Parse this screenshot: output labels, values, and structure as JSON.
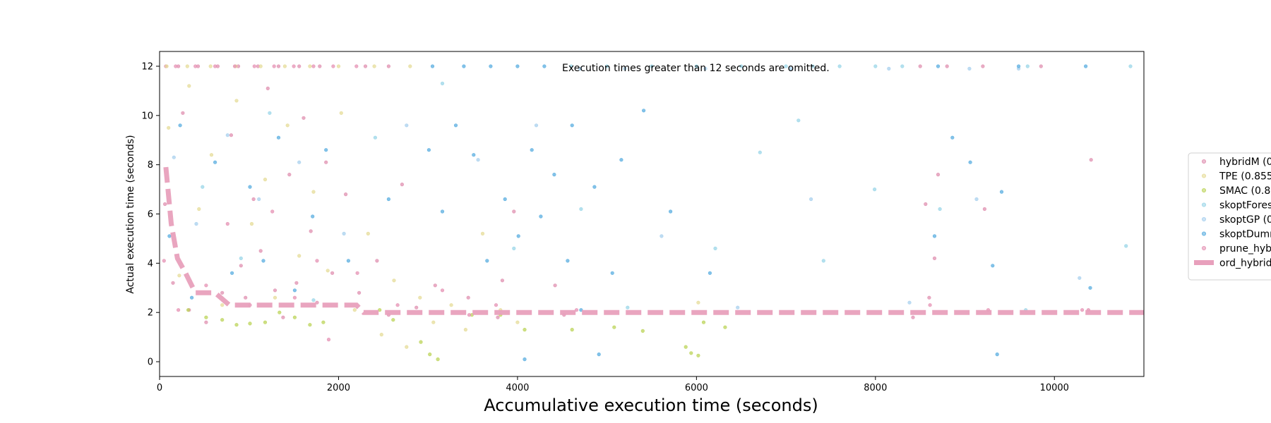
{
  "chart_data": {
    "type": "scatter",
    "title": "",
    "xlabel": "Accumulative execution time (seconds)",
    "ylabel": "Actual execution time (seconds)",
    "xlim": [
      0,
      11000
    ],
    "ylim": [
      -0.6,
      12.6
    ],
    "xticks": [
      0,
      2000,
      4000,
      6000,
      8000,
      10000
    ],
    "yticks": [
      0,
      2,
      4,
      6,
      8,
      10,
      12
    ],
    "grid": false,
    "legend_position": "right (clipped)",
    "annotation": "Execution times greater than 12 seconds are omitted.",
    "series": [
      {
        "name": "hybridM (0",
        "kind": "scatter",
        "color": "#e090b0",
        "points": [
          [
            70,
            12
          ],
          [
            210,
            12
          ],
          [
            430,
            12
          ],
          [
            650,
            12
          ],
          [
            880,
            12
          ],
          [
            1100,
            12
          ],
          [
            1330,
            12
          ],
          [
            1560,
            12
          ],
          [
            1790,
            12
          ],
          [
            2300,
            12
          ],
          [
            2560,
            12
          ],
          [
            8500,
            12
          ],
          [
            8800,
            12
          ],
          [
            9200,
            12
          ],
          [
            9850,
            12
          ],
          [
            60,
            6.4
          ],
          [
            150,
            3.2
          ],
          [
            260,
            10.1
          ],
          [
            330,
            2.1
          ],
          [
            520,
            1.6
          ],
          [
            700,
            2.8
          ],
          [
            800,
            9.2
          ],
          [
            910,
            3.9
          ],
          [
            960,
            2.6
          ],
          [
            1050,
            6.6
          ],
          [
            1130,
            4.5
          ],
          [
            1210,
            11.1
          ],
          [
            1290,
            2.9
          ],
          [
            1380,
            1.8
          ],
          [
            1450,
            7.6
          ],
          [
            1530,
            3.2
          ],
          [
            1610,
            9.9
          ],
          [
            1690,
            5.3
          ],
          [
            1760,
            2.4
          ],
          [
            1860,
            8.1
          ],
          [
            1930,
            3.6
          ],
          [
            2080,
            6.8
          ],
          [
            2230,
            2.8
          ],
          [
            2430,
            4.1
          ],
          [
            2560,
            1.9
          ],
          [
            2710,
            7.2
          ],
          [
            2870,
            2.2
          ],
          [
            3080,
            3.1
          ],
          [
            3450,
            2.6
          ],
          [
            3780,
            1.8
          ],
          [
            3830,
            3.3
          ],
          [
            3960,
            6.1
          ],
          [
            4420,
            3.1
          ],
          [
            4520,
            1.9
          ],
          [
            8420,
            1.8
          ],
          [
            8560,
            6.4
          ],
          [
            8600,
            2.6
          ],
          [
            8660,
            4.2
          ],
          [
            8700,
            7.6
          ],
          [
            9220,
            6.2
          ],
          [
            10380,
            2.1
          ],
          [
            10410,
            8.2
          ]
        ]
      },
      {
        "name": "TPE (0.855",
        "kind": "scatter",
        "color": "#e6dc98",
        "points": [
          [
            80,
            12
          ],
          [
            310,
            12
          ],
          [
            570,
            12
          ],
          [
            850,
            12
          ],
          [
            1130,
            12
          ],
          [
            1400,
            12
          ],
          [
            1680,
            12
          ],
          [
            2000,
            12
          ],
          [
            2400,
            12
          ],
          [
            2800,
            12
          ],
          [
            100,
            9.5
          ],
          [
            220,
            3.5
          ],
          [
            330,
            11.2
          ],
          [
            440,
            6.2
          ],
          [
            580,
            8.4
          ],
          [
            700,
            2.3
          ],
          [
            860,
            10.6
          ],
          [
            1030,
            5.6
          ],
          [
            1180,
            7.4
          ],
          [
            1290,
            2.6
          ],
          [
            1430,
            9.6
          ],
          [
            1560,
            4.3
          ],
          [
            1720,
            6.9
          ],
          [
            1880,
            3.7
          ],
          [
            2030,
            10.1
          ],
          [
            2180,
            2.1
          ],
          [
            2330,
            5.2
          ],
          [
            2480,
            1.1
          ],
          [
            2620,
            3.3
          ],
          [
            2760,
            0.6
          ],
          [
            2910,
            2.6
          ],
          [
            3060,
            1.6
          ],
          [
            3260,
            2.3
          ],
          [
            3420,
            1.3
          ],
          [
            3610,
            5.2
          ],
          [
            3810,
            2.1
          ],
          [
            4000,
            1.6
          ],
          [
            6020,
            2.4
          ]
        ]
      },
      {
        "name": "SMAC (0.8",
        "kind": "scatter",
        "color": "#bcd45a",
        "points": [
          [
            320,
            2.1
          ],
          [
            520,
            1.8
          ],
          [
            700,
            1.7
          ],
          [
            860,
            1.5
          ],
          [
            1010,
            1.55
          ],
          [
            1180,
            1.6
          ],
          [
            1340,
            2.0
          ],
          [
            1510,
            1.8
          ],
          [
            1680,
            1.5
          ],
          [
            1830,
            1.6
          ],
          [
            2460,
            2.1
          ],
          [
            2610,
            1.7
          ],
          [
            2920,
            0.8
          ],
          [
            3020,
            0.3
          ],
          [
            3110,
            0.1
          ],
          [
            3490,
            1.9
          ],
          [
            3810,
            1.9
          ],
          [
            4080,
            1.3
          ],
          [
            4610,
            1.3
          ],
          [
            5080,
            1.4
          ],
          [
            5400,
            1.25
          ],
          [
            5880,
            0.6
          ],
          [
            5940,
            0.35
          ],
          [
            6020,
            0.25
          ],
          [
            6080,
            1.6
          ],
          [
            6320,
            1.4
          ]
        ]
      },
      {
        "name": "skoptForest",
        "kind": "scatter",
        "color": "#9ad6e8",
        "points": [
          [
            4600,
            12
          ],
          [
            5000,
            12
          ],
          [
            5500,
            12
          ],
          [
            6000,
            12
          ],
          [
            6500,
            12
          ],
          [
            7000,
            12
          ],
          [
            7300,
            12
          ],
          [
            7600,
            12
          ],
          [
            8000,
            12
          ],
          [
            8300,
            12
          ],
          [
            9700,
            12
          ],
          [
            10850,
            12
          ],
          [
            480,
            7.1
          ],
          [
            910,
            4.2
          ],
          [
            1230,
            10.1
          ],
          [
            1720,
            2.5
          ],
          [
            2410,
            9.1
          ],
          [
            3160,
            11.3
          ],
          [
            3960,
            4.6
          ],
          [
            4710,
            6.2
          ],
          [
            5230,
            2.2
          ],
          [
            6210,
            4.6
          ],
          [
            6710,
            8.5
          ],
          [
            7140,
            9.8
          ],
          [
            7420,
            4.1
          ],
          [
            7990,
            7.0
          ],
          [
            8720,
            6.2
          ],
          [
            9680,
            2.1
          ],
          [
            10800,
            4.7
          ]
        ]
      },
      {
        "name": "skoptGP (0",
        "kind": "scatter",
        "color": "#a8d0ee",
        "points": [
          [
            4700,
            11.9
          ],
          [
            5200,
            11.9
          ],
          [
            6100,
            11.9
          ],
          [
            7050,
            11.9
          ],
          [
            8150,
            11.9
          ],
          [
            9050,
            11.9
          ],
          [
            9600,
            11.9
          ],
          [
            160,
            8.3
          ],
          [
            410,
            5.6
          ],
          [
            760,
            9.2
          ],
          [
            1110,
            6.6
          ],
          [
            1560,
            8.1
          ],
          [
            2060,
            5.2
          ],
          [
            2760,
            9.6
          ],
          [
            3560,
            8.2
          ],
          [
            4210,
            9.6
          ],
          [
            5610,
            5.1
          ],
          [
            6460,
            2.2
          ],
          [
            7280,
            6.6
          ],
          [
            8380,
            2.4
          ],
          [
            9130,
            6.6
          ],
          [
            10280,
            3.4
          ]
        ]
      },
      {
        "name": "skoptDummy",
        "kind": "scatter",
        "color": "#5aaee0",
        "points": [
          [
            3050,
            12
          ],
          [
            3400,
            12
          ],
          [
            3700,
            12
          ],
          [
            4000,
            12
          ],
          [
            4300,
            12
          ],
          [
            8700,
            12
          ],
          [
            9600,
            12
          ],
          [
            10350,
            12
          ],
          [
            110,
            5.1
          ],
          [
            230,
            9.6
          ],
          [
            360,
            2.6
          ],
          [
            620,
            8.1
          ],
          [
            810,
            3.6
          ],
          [
            1010,
            7.1
          ],
          [
            1160,
            4.1
          ],
          [
            1330,
            9.1
          ],
          [
            1510,
            2.9
          ],
          [
            1710,
            5.9
          ],
          [
            1860,
            8.6
          ],
          [
            2110,
            4.1
          ],
          [
            2560,
            6.6
          ],
          [
            3010,
            8.6
          ],
          [
            3160,
            6.1
          ],
          [
            3310,
            9.6
          ],
          [
            3510,
            8.4
          ],
          [
            3660,
            4.1
          ],
          [
            3860,
            6.6
          ],
          [
            4010,
            5.1
          ],
          [
            4080,
            0.1
          ],
          [
            4160,
            8.6
          ],
          [
            4260,
            5.9
          ],
          [
            4410,
            7.6
          ],
          [
            4560,
            4.1
          ],
          [
            4610,
            9.6
          ],
          [
            4710,
            2.1
          ],
          [
            4860,
            7.1
          ],
          [
            4910,
            0.3
          ],
          [
            5060,
            3.6
          ],
          [
            5160,
            8.2
          ],
          [
            5410,
            10.2
          ],
          [
            5710,
            6.1
          ],
          [
            6150,
            3.6
          ],
          [
            8660,
            5.1
          ],
          [
            8860,
            9.1
          ],
          [
            9060,
            8.1
          ],
          [
            9310,
            3.9
          ],
          [
            9360,
            0.3
          ],
          [
            9410,
            6.9
          ],
          [
            10400,
            3.0
          ]
        ]
      },
      {
        "name": "prune_hyb",
        "kind": "scatter",
        "color": "#e592b4",
        "points": [
          [
            180,
            12
          ],
          [
            400,
            12
          ],
          [
            620,
            12
          ],
          [
            840,
            12
          ],
          [
            1060,
            12
          ],
          [
            1280,
            12
          ],
          [
            1500,
            12
          ],
          [
            1720,
            12
          ],
          [
            1940,
            12
          ],
          [
            2200,
            12
          ],
          [
            50,
            4.1
          ],
          [
            210,
            2.1
          ],
          [
            520,
            3.1
          ],
          [
            760,
            5.6
          ],
          [
            1010,
            2.3
          ],
          [
            1260,
            6.1
          ],
          [
            1510,
            2.6
          ],
          [
            1760,
            4.1
          ],
          [
            1890,
            0.9
          ],
          [
            2210,
            3.6
          ],
          [
            2660,
            2.3
          ],
          [
            3160,
            2.9
          ],
          [
            3460,
            1.9
          ],
          [
            3760,
            2.3
          ],
          [
            4660,
            2.1
          ],
          [
            8610,
            2.3
          ],
          [
            9260,
            2.1
          ],
          [
            10310,
            2.1
          ]
        ]
      },
      {
        "name": "ord_hybrid",
        "kind": "line",
        "color": "#e8a0bc",
        "points": [
          [
            70,
            7.9
          ],
          [
            130,
            5.6
          ],
          [
            200,
            4.2
          ],
          [
            290,
            3.6
          ],
          [
            400,
            2.8
          ],
          [
            620,
            2.8
          ],
          [
            780,
            2.3
          ],
          [
            1600,
            2.3
          ],
          [
            2200,
            2.3
          ],
          [
            2280,
            2.0
          ],
          [
            11000,
            2.0
          ]
        ]
      }
    ]
  }
}
